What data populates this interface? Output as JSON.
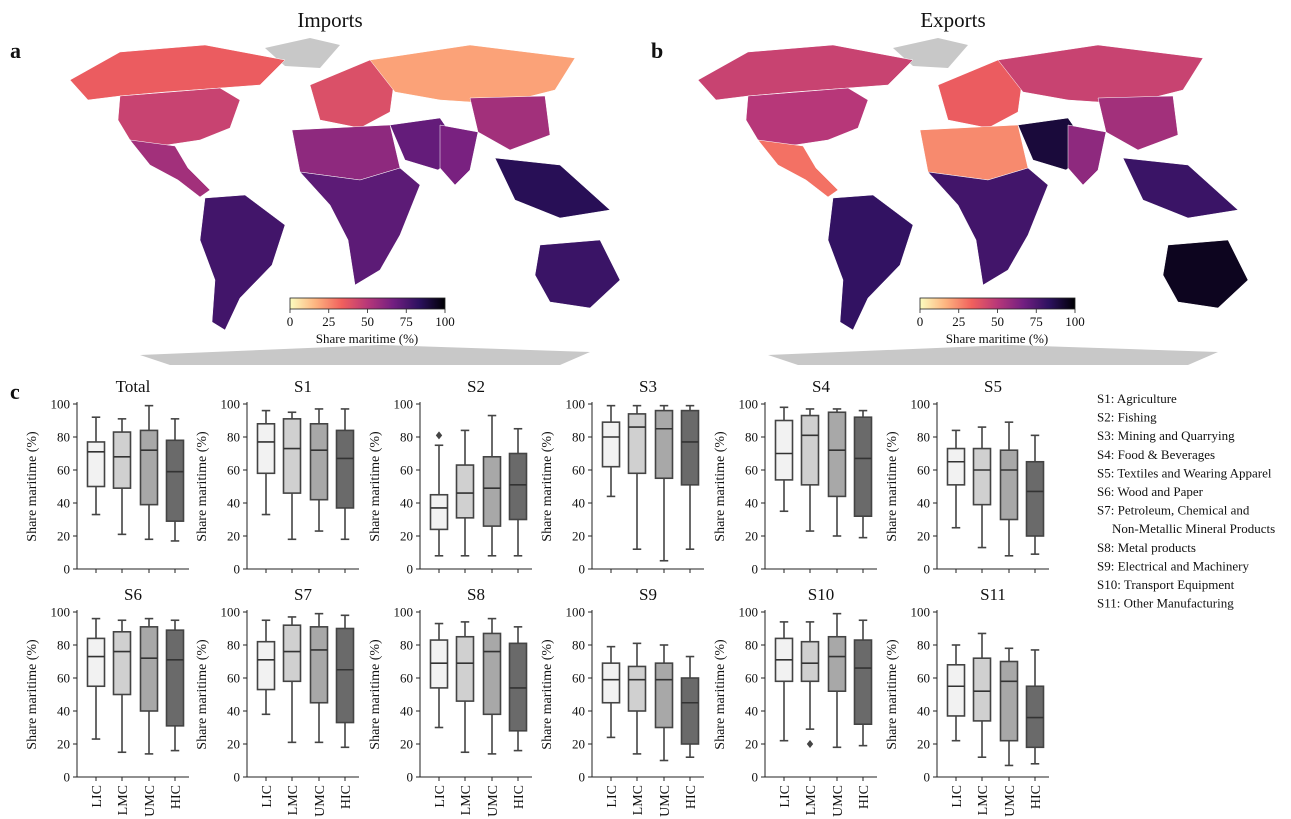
{
  "maps": [
    {
      "panel": "a",
      "title": "Imports",
      "colorbar": {
        "label": "Share maritime (%)",
        "ticks": [
          0,
          25,
          50,
          75,
          100
        ],
        "stops": [
          "#fcfdbf",
          "#fdb37f",
          "#f1605d",
          "#b73779",
          "#721f81",
          "#2c115f",
          "#000004"
        ]
      },
      "regions": [
        {
          "name": "north-america",
          "value": 35
        },
        {
          "name": "usa",
          "value": 45
        },
        {
          "name": "mexico-central",
          "value": 55
        },
        {
          "name": "south-america",
          "value": 78
        },
        {
          "name": "europe",
          "value": 40
        },
        {
          "name": "russia",
          "value": 20
        },
        {
          "name": "middle-east",
          "value": 70
        },
        {
          "name": "north-africa",
          "value": 60
        },
        {
          "name": "sub-saharan-africa",
          "value": 72
        },
        {
          "name": "south-asia",
          "value": 65
        },
        {
          "name": "china",
          "value": 55
        },
        {
          "name": "southeast-asia",
          "value": 85
        },
        {
          "name": "australia",
          "value": 80
        }
      ]
    },
    {
      "panel": "b",
      "title": "Exports",
      "colorbar": {
        "label": "Share maritime (%)",
        "ticks": [
          0,
          25,
          50,
          75,
          100
        ],
        "stops": [
          "#fcfdbf",
          "#fdb37f",
          "#f1605d",
          "#b73779",
          "#721f81",
          "#2c115f",
          "#000004"
        ]
      },
      "regions": [
        {
          "name": "north-america",
          "value": 45
        },
        {
          "name": "usa",
          "value": 50
        },
        {
          "name": "mexico-central",
          "value": 30
        },
        {
          "name": "south-america",
          "value": 82
        },
        {
          "name": "europe",
          "value": 35
        },
        {
          "name": "russia",
          "value": 45
        },
        {
          "name": "middle-east",
          "value": 90
        },
        {
          "name": "north-africa",
          "value": 25
        },
        {
          "name": "sub-saharan-africa",
          "value": 78
        },
        {
          "name": "south-asia",
          "value": 60
        },
        {
          "name": "china",
          "value": 55
        },
        {
          "name": "southeast-asia",
          "value": 80
        },
        {
          "name": "australia",
          "value": 95
        }
      ]
    }
  ],
  "panel_c_label": "c",
  "chart_data": {
    "type": "box",
    "ylabel": "Share maritime (%)",
    "ylim": [
      0,
      100
    ],
    "yticks": [
      0,
      20,
      40,
      60,
      80,
      100
    ],
    "categories": [
      "LIC",
      "LMC",
      "UMC",
      "HIC"
    ],
    "colors": [
      "#f2f2f2",
      "#d0d0d0",
      "#a8a8a8",
      "#6a6a6a"
    ],
    "panels": [
      {
        "title": "Total",
        "boxes": [
          {
            "min": 33,
            "q1": 50,
            "median": 71,
            "q3": 77,
            "max": 92
          },
          {
            "min": 21,
            "q1": 49,
            "median": 68,
            "q3": 83,
            "max": 91
          },
          {
            "min": 18,
            "q1": 39,
            "median": 72,
            "q3": 84,
            "max": 99
          },
          {
            "min": 17,
            "q1": 29,
            "median": 59,
            "q3": 78,
            "max": 91
          }
        ]
      },
      {
        "title": "S1",
        "boxes": [
          {
            "min": 33,
            "q1": 58,
            "median": 77,
            "q3": 88,
            "max": 96
          },
          {
            "min": 18,
            "q1": 46,
            "median": 73,
            "q3": 91,
            "max": 95
          },
          {
            "min": 23,
            "q1": 42,
            "median": 72,
            "q3": 88,
            "max": 97
          },
          {
            "min": 18,
            "q1": 37,
            "median": 67,
            "q3": 84,
            "max": 97
          }
        ]
      },
      {
        "title": "S2",
        "boxes": [
          {
            "min": 8,
            "q1": 24,
            "median": 37,
            "q3": 45,
            "max": 75,
            "outliers": [
              81
            ]
          },
          {
            "min": 8,
            "q1": 31,
            "median": 46,
            "q3": 63,
            "max": 84
          },
          {
            "min": 8,
            "q1": 26,
            "median": 49,
            "q3": 68,
            "max": 93
          },
          {
            "min": 8,
            "q1": 30,
            "median": 51,
            "q3": 70,
            "max": 85
          }
        ]
      },
      {
        "title": "S3",
        "boxes": [
          {
            "min": 44,
            "q1": 62,
            "median": 80,
            "q3": 89,
            "max": 99
          },
          {
            "min": 12,
            "q1": 58,
            "median": 86,
            "q3": 94,
            "max": 99
          },
          {
            "min": 5,
            "q1": 55,
            "median": 85,
            "q3": 96,
            "max": 99
          },
          {
            "min": 12,
            "q1": 51,
            "median": 77,
            "q3": 96,
            "max": 99
          }
        ]
      },
      {
        "title": "S4",
        "boxes": [
          {
            "min": 35,
            "q1": 54,
            "median": 70,
            "q3": 90,
            "max": 98
          },
          {
            "min": 23,
            "q1": 51,
            "median": 81,
            "q3": 93,
            "max": 97
          },
          {
            "min": 20,
            "q1": 44,
            "median": 72,
            "q3": 95,
            "max": 97
          },
          {
            "min": 19,
            "q1": 32,
            "median": 67,
            "q3": 92,
            "max": 96
          }
        ]
      },
      {
        "title": "S5",
        "boxes": [
          {
            "min": 25,
            "q1": 51,
            "median": 65,
            "q3": 73,
            "max": 84
          },
          {
            "min": 13,
            "q1": 39,
            "median": 60,
            "q3": 73,
            "max": 86
          },
          {
            "min": 8,
            "q1": 30,
            "median": 60,
            "q3": 72,
            "max": 89
          },
          {
            "min": 9,
            "q1": 20,
            "median": 47,
            "q3": 65,
            "max": 81
          }
        ]
      },
      {
        "title": "S6",
        "boxes": [
          {
            "min": 23,
            "q1": 55,
            "median": 73,
            "q3": 84,
            "max": 96
          },
          {
            "min": 15,
            "q1": 50,
            "median": 76,
            "q3": 88,
            "max": 95
          },
          {
            "min": 14,
            "q1": 40,
            "median": 72,
            "q3": 91,
            "max": 96
          },
          {
            "min": 16,
            "q1": 31,
            "median": 71,
            "q3": 89,
            "max": 95
          }
        ]
      },
      {
        "title": "S7",
        "boxes": [
          {
            "min": 38,
            "q1": 53,
            "median": 71,
            "q3": 82,
            "max": 95
          },
          {
            "min": 21,
            "q1": 58,
            "median": 76,
            "q3": 92,
            "max": 97
          },
          {
            "min": 21,
            "q1": 45,
            "median": 77,
            "q3": 91,
            "max": 99
          },
          {
            "min": 18,
            "q1": 33,
            "median": 65,
            "q3": 90,
            "max": 98
          }
        ]
      },
      {
        "title": "S8",
        "boxes": [
          {
            "min": 30,
            "q1": 54,
            "median": 69,
            "q3": 83,
            "max": 93
          },
          {
            "min": 15,
            "q1": 46,
            "median": 69,
            "q3": 85,
            "max": 94
          },
          {
            "min": 14,
            "q1": 38,
            "median": 76,
            "q3": 87,
            "max": 96
          },
          {
            "min": 16,
            "q1": 28,
            "median": 54,
            "q3": 81,
            "max": 91
          }
        ]
      },
      {
        "title": "S9",
        "boxes": [
          {
            "min": 24,
            "q1": 45,
            "median": 59,
            "q3": 69,
            "max": 79
          },
          {
            "min": 14,
            "q1": 40,
            "median": 59,
            "q3": 67,
            "max": 81
          },
          {
            "min": 10,
            "q1": 30,
            "median": 59,
            "q3": 69,
            "max": 80
          },
          {
            "min": 12,
            "q1": 20,
            "median": 45,
            "q3": 60,
            "max": 73
          }
        ]
      },
      {
        "title": "S10",
        "boxes": [
          {
            "min": 22,
            "q1": 58,
            "median": 71,
            "q3": 84,
            "max": 94
          },
          {
            "min": 29,
            "q1": 58,
            "median": 69,
            "q3": 82,
            "max": 94,
            "outliers": [
              20
            ]
          },
          {
            "min": 18,
            "q1": 52,
            "median": 73,
            "q3": 85,
            "max": 99
          },
          {
            "min": 19,
            "q1": 32,
            "median": 66,
            "q3": 83,
            "max": 95
          }
        ]
      },
      {
        "title": "S11",
        "boxes": [
          {
            "min": 22,
            "q1": 37,
            "median": 55,
            "q3": 68,
            "max": 80
          },
          {
            "min": 12,
            "q1": 34,
            "median": 52,
            "q3": 72,
            "max": 87
          },
          {
            "min": 7,
            "q1": 22,
            "median": 58,
            "q3": 70,
            "max": 78
          },
          {
            "min": 8,
            "q1": 18,
            "median": 36,
            "q3": 55,
            "max": 77
          }
        ]
      }
    ]
  },
  "legend": [
    "S1: Agriculture",
    "S2: Fishing",
    "S3: Mining and Quarrying",
    "S4: Food & Beverages",
    "S5: Textiles and Wearing Apparel",
    "S6: Wood and Paper",
    "S7: Petroleum, Chemical and",
    "Non-Metallic Mineral Products",
    "S8: Metal products",
    "S9: Electrical and Machinery",
    "S10: Transport Equipment",
    "S11: Other Manufacturing"
  ]
}
